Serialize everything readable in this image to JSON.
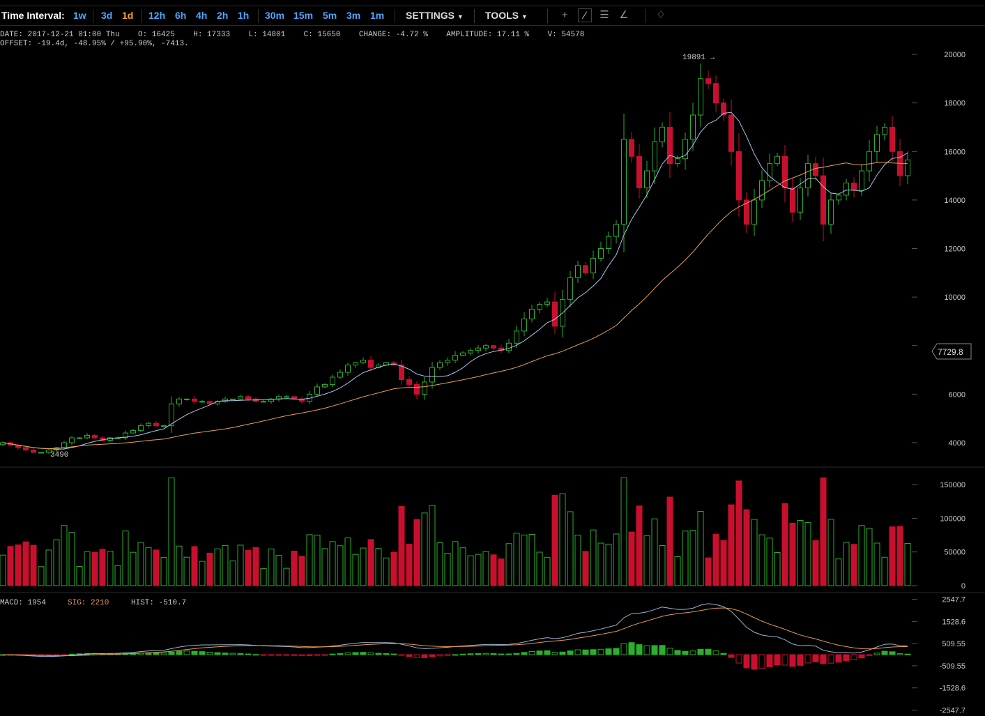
{
  "toolbar": {
    "interval_label": "Time Interval:",
    "intervals": [
      {
        "label": "1w",
        "active": false
      },
      {
        "label": "3d",
        "active": false
      },
      {
        "label": "1d",
        "active": true
      },
      {
        "label": "12h",
        "active": false
      },
      {
        "label": "6h",
        "active": false
      },
      {
        "label": "4h",
        "active": false
      },
      {
        "label": "2h",
        "active": false
      },
      {
        "label": "1h",
        "active": false
      },
      {
        "label": "30m",
        "active": false
      },
      {
        "label": "15m",
        "active": false
      },
      {
        "label": "5m",
        "active": false
      },
      {
        "label": "3m",
        "active": false
      },
      {
        "label": "1m",
        "active": false
      }
    ],
    "settings_label": "SETTINGS",
    "tools_label": "TOOLS",
    "tool_icons": [
      "crosshair-icon",
      "line-tool-icon",
      "menu-icon",
      "fan-tool-icon",
      "bell-icon"
    ]
  },
  "info": {
    "line1": "DATE: 2017-12-21 01:00 Thu    O: 16425    H: 17333    L: 14801    C: 15650    CHANGE: -4.72 %    AMPLITUDE: 17.11 %    V: 54578",
    "line2": "OFFSET: -19.4d, -48.95% / +95.90%, -7413."
  },
  "colors": {
    "up": "#2ab02a",
    "down": "#c8102e",
    "ma_fast": "#a8c8e8",
    "ma_slow": "#e8a050",
    "macd_line": "#9bb4d0",
    "signal_line": "#e89a50"
  },
  "chart_data": {
    "type": "candlestick",
    "price_ticks": [
      "20000",
      "18000",
      "16000",
      "14000",
      "12000",
      "10000",
      "6000",
      "4000"
    ],
    "price_range": [
      3000,
      20500
    ],
    "high_annotation": "19891",
    "low_annotation": "3490",
    "price_marker": "7729.8",
    "volume_ticks": [
      "150000",
      "100000",
      "50000",
      "0"
    ],
    "volume_range": [
      0,
      165000
    ],
    "macd_ticks": [
      "2547.7",
      "1528.6",
      "509.55",
      "-509.55",
      "-1528.6",
      "-2547.7"
    ],
    "macd_range": [
      -2547.7,
      2547.7
    ],
    "macd_legend": {
      "macd": "MACD: 1954",
      "sig": "SIG: 2210",
      "hist": "HIST: -510.7"
    },
    "closes": [
      4000,
      3900,
      3800,
      3700,
      3600,
      3600,
      3700,
      3800,
      4000,
      4200,
      4200,
      4300,
      4200,
      4100,
      4200,
      4200,
      4400,
      4500,
      4700,
      4800,
      4700,
      4700,
      5600,
      5800,
      5800,
      5700,
      5700,
      5600,
      5700,
      5800,
      5800,
      5900,
      5800,
      5700,
      5700,
      5800,
      5900,
      5900,
      5800,
      5700,
      6000,
      6300,
      6400,
      6700,
      6900,
      7200,
      7300,
      7400,
      7100,
      7200,
      7300,
      7200,
      6600,
      6400,
      6000,
      6500,
      7100,
      7300,
      7400,
      7600,
      7700,
      7800,
      7900,
      8000,
      7900,
      7800,
      8100,
      8600,
      9100,
      9500,
      9700,
      9800,
      8800,
      9900,
      10800,
      11300,
      11000,
      11600,
      12000,
      12500,
      13000,
      16500,
      15800,
      14500,
      15200,
      16400,
      17000,
      15500,
      15700,
      16500,
      17500,
      19000,
      18800,
      18000,
      17500,
      16000,
      14000,
      13000,
      14000,
      14800,
      15500,
      15800,
      14500,
      13500,
      14500,
      15500,
      15000,
      13000,
      14000,
      14200,
      14700,
      14400,
      15200,
      16000,
      16700,
      17000,
      16000,
      15000,
      15650
    ]
  }
}
